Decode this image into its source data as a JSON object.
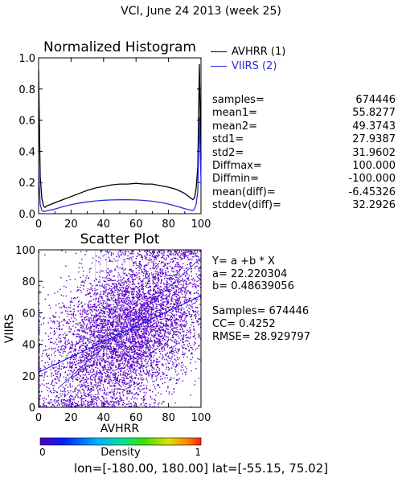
{
  "title": "VCI,  June 24 2013 (week 25)",
  "chart_data": [
    {
      "type": "line",
      "title": "Normalized Histogram",
      "xlim": [
        0,
        100
      ],
      "ylim": [
        0,
        1.0
      ],
      "x_ticks": [
        "0",
        "20",
        "40",
        "60",
        "80",
        "100"
      ],
      "y_ticks": [
        "0.0",
        "0.2",
        "0.4",
        "0.6",
        "0.8",
        "1.0"
      ],
      "x": [
        0,
        1,
        2,
        3,
        4,
        5,
        10,
        15,
        20,
        25,
        30,
        35,
        40,
        45,
        50,
        55,
        60,
        65,
        70,
        75,
        80,
        85,
        90,
        95,
        96,
        97,
        98,
        99,
        100
      ],
      "series": [
        {
          "name": "AVHRR (1)",
          "color": "#000000",
          "values": [
            0.92,
            0.24,
            0.1,
            0.05,
            0.04,
            0.05,
            0.07,
            0.09,
            0.11,
            0.13,
            0.15,
            0.165,
            0.175,
            0.185,
            0.19,
            0.19,
            0.195,
            0.19,
            0.19,
            0.18,
            0.17,
            0.155,
            0.13,
            0.09,
            0.1,
            0.16,
            0.3,
            0.96,
            0.35
          ]
        },
        {
          "name": "VIIRS (2)",
          "color": "#2a2adf",
          "values": [
            0.28,
            0.06,
            0.02,
            0.015,
            0.015,
            0.018,
            0.03,
            0.045,
            0.058,
            0.068,
            0.076,
            0.082,
            0.086,
            0.088,
            0.089,
            0.089,
            0.088,
            0.085,
            0.08,
            0.072,
            0.062,
            0.048,
            0.032,
            0.02,
            0.03,
            0.06,
            0.14,
            0.62,
            0.2
          ]
        }
      ]
    },
    {
      "type": "scatter",
      "title": "Scatter Plot",
      "xlabel": "AVHRR",
      "ylabel": "VIIRS",
      "xlim": [
        0,
        100
      ],
      "ylim": [
        0,
        100
      ],
      "x_ticks": [
        "0",
        "20",
        "40",
        "60",
        "80",
        "100"
      ],
      "y_ticks": [
        "0",
        "20",
        "40",
        "60",
        "80",
        "100"
      ],
      "fit_line": {
        "intercept": 22.220304,
        "slope": 0.48639056
      },
      "one_to_one_line": true,
      "point_color": "#5a00c8",
      "colorbar": {
        "label": "Density",
        "min_label": "0",
        "max_label": "1"
      }
    }
  ],
  "stats": [
    {
      "label": "samples=",
      "value": "674446"
    },
    {
      "label": "mean1=",
      "value": "55.8277"
    },
    {
      "label": "mean2=",
      "value": "49.3743"
    },
    {
      "label": "std1=",
      "value": "27.9387"
    },
    {
      "label": "std2=",
      "value": "31.9602"
    },
    {
      "label": "Diffmax=",
      "value": "100.000"
    },
    {
      "label": "Diffmin=",
      "value": "-100.000"
    },
    {
      "label": "mean(diff)=",
      "value": "-6.45326"
    },
    {
      "label": "stddev(diff)=",
      "value": "32.2926"
    }
  ],
  "regression": {
    "equation": "Y= a +b * X",
    "a": "a= 22.220304",
    "b": "b= 0.48639056",
    "samples": "Samples= 674446",
    "cc": "CC=  0.4252",
    "rmse": "RMSE= 28.929797"
  },
  "footer": "lon=[-180.00, 180.00] lat=[-55.15, 75.02]"
}
